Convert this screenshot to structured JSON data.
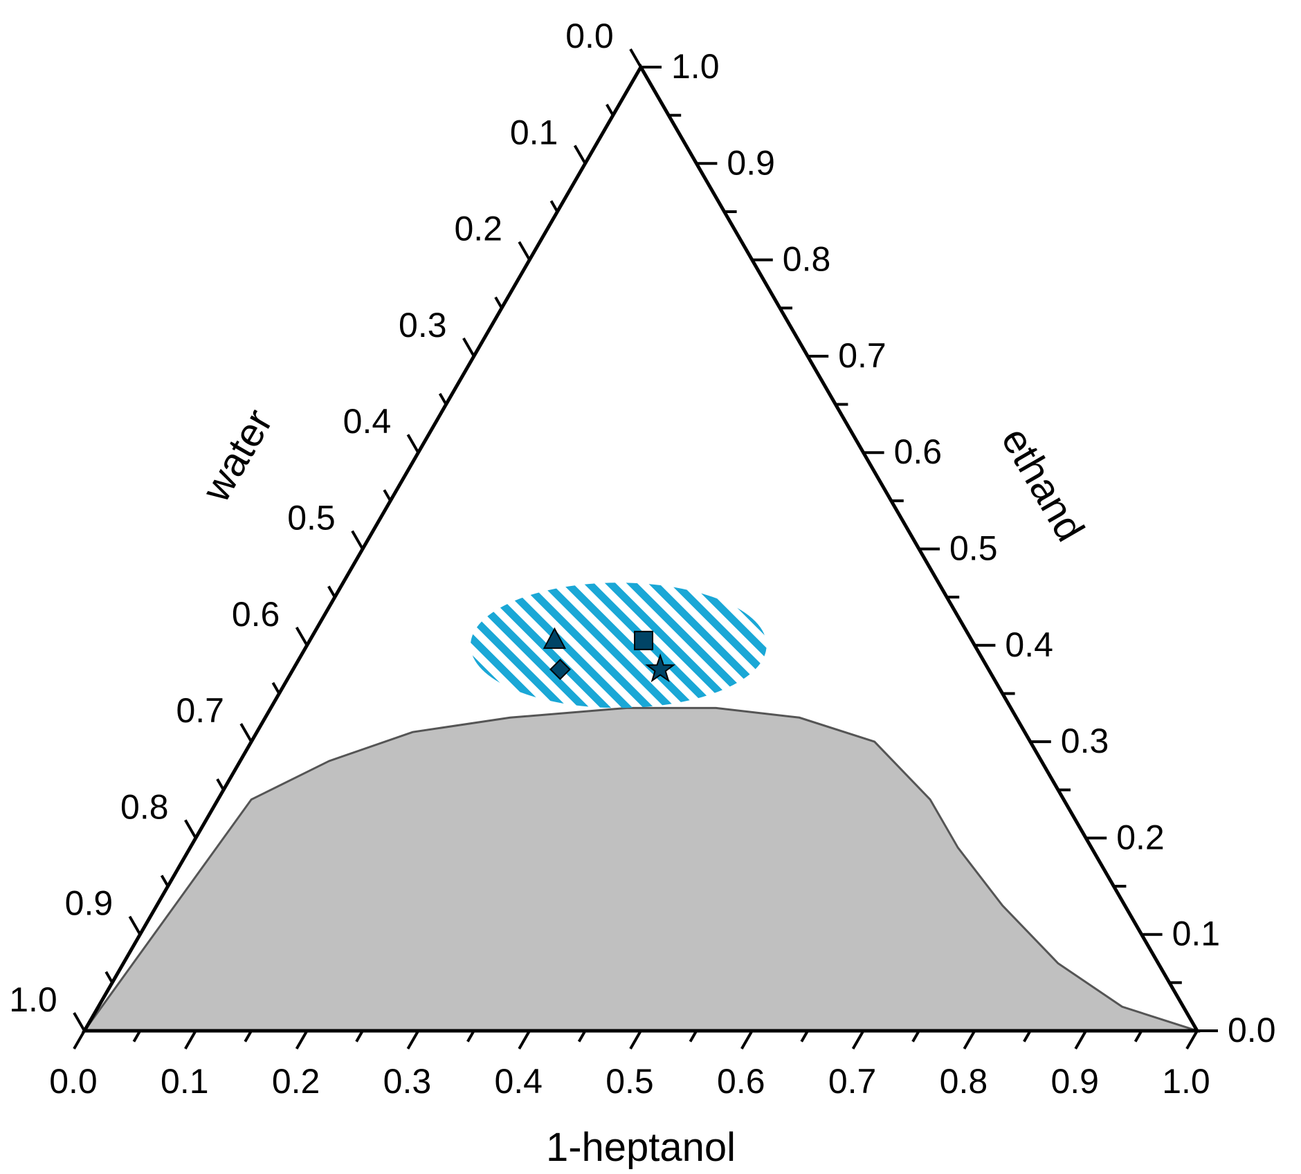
{
  "chart_data": {
    "type": "ternary",
    "axes": {
      "bottom": {
        "label": "1-heptanol",
        "ticks": [
          "0.0",
          "0.1",
          "0.2",
          "0.3",
          "0.4",
          "0.5",
          "0.6",
          "0.7",
          "0.8",
          "0.9",
          "1.0"
        ]
      },
      "left": {
        "label": "water",
        "ticks": [
          "0.0",
          "0.1",
          "0.2",
          "0.3",
          "0.4",
          "0.5",
          "0.6",
          "0.7",
          "0.8",
          "0.9",
          "1.0"
        ]
      },
      "right": {
        "label": "ethand",
        "ticks": [
          "0.0",
          "0.1",
          "0.2",
          "0.3",
          "0.4",
          "0.5",
          "0.6",
          "0.7",
          "0.8",
          "0.9",
          "1.0"
        ]
      }
    },
    "two_phase_region": {
      "fill": "#c0c0c0",
      "stroke": "#555555",
      "boundary": [
        {
          "heptanol": 0.0,
          "ethanol": 0.0
        },
        {
          "heptanol": 0.03,
          "ethanol": 0.24
        },
        {
          "heptanol": 0.08,
          "ethanol": 0.28
        },
        {
          "heptanol": 0.14,
          "ethanol": 0.31
        },
        {
          "heptanol": 0.22,
          "ethanol": 0.325
        },
        {
          "heptanol": 0.32,
          "ethanol": 0.335
        },
        {
          "heptanol": 0.4,
          "ethanol": 0.335
        },
        {
          "heptanol": 0.48,
          "ethanol": 0.325
        },
        {
          "heptanol": 0.56,
          "ethanol": 0.3
        },
        {
          "heptanol": 0.64,
          "ethanol": 0.24
        },
        {
          "heptanol": 0.69,
          "ethanol": 0.19
        },
        {
          "heptanol": 0.76,
          "ethanol": 0.13
        },
        {
          "heptanol": 0.84,
          "ethanol": 0.07
        },
        {
          "heptanol": 0.92,
          "ethanol": 0.025
        },
        {
          "heptanol": 1.0,
          "ethanol": 0.0
        }
      ]
    },
    "hatched_region": {
      "color": "#1aa7d6",
      "center": {
        "heptanol": 0.28,
        "ethanol": 0.4
      },
      "semi_axis_heptanol": 0.133,
      "semi_axis_ethanol": 0.065
    },
    "points": [
      {
        "marker": "triangle",
        "heptanol": 0.22,
        "ethanol": 0.405,
        "color": "#004466"
      },
      {
        "marker": "diamond",
        "heptanol": 0.24,
        "ethanol": 0.375,
        "color": "#004466"
      },
      {
        "marker": "square",
        "heptanol": 0.3,
        "ethanol": 0.405,
        "color": "#004466"
      },
      {
        "marker": "star",
        "heptanol": 0.33,
        "ethanol": 0.375,
        "color": "#004466"
      }
    ]
  }
}
